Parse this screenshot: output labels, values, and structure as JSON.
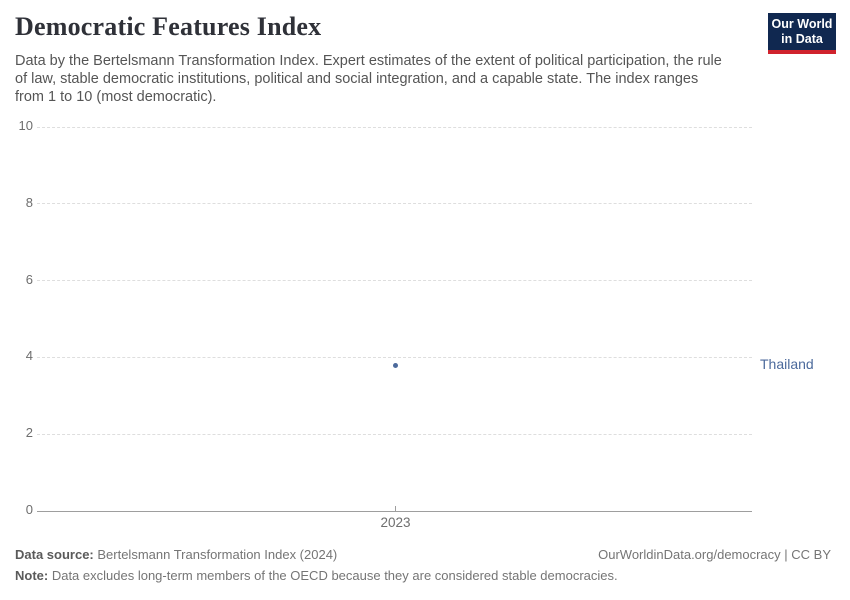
{
  "header": {
    "title": "Democratic Features Index",
    "subtitle_lines": {
      "0": "Data by the Bertelsmann Transformation Index. Expert estimates of the extent of political participation, the rule",
      "1": "of law, stable democratic institutions, political and social integration, and a capable state. The index ranges",
      "2": "from 1 to 10 (most democratic)."
    },
    "logo": {
      "line1": "Our World",
      "line2": "in Data",
      "bg_color": "#102850",
      "accent_color": "#d0222d"
    }
  },
  "chart_data": {
    "type": "scatter",
    "title": "Democratic Features Index",
    "x": [
      2023
    ],
    "series": [
      {
        "name": "Thailand",
        "color": "#4c6a9c",
        "values": [
          3.8
        ]
      }
    ],
    "ylim": [
      0,
      10
    ],
    "yticks": [
      0,
      2,
      4,
      6,
      8,
      10
    ],
    "xticks": [
      "2023"
    ],
    "xlabel": "",
    "ylabel": "",
    "grid": "horizontal-dashed",
    "entity_label_position": "right-of-plot"
  },
  "footer": {
    "source_label": "Data source:",
    "source_text": " Bertelsmann Transformation Index (2024)",
    "rights": "OurWorldinData.org/democracy | CC BY",
    "note_label": "Note:",
    "note_text": " Data excludes long-term members of the OECD because they are considered stable democracies."
  }
}
